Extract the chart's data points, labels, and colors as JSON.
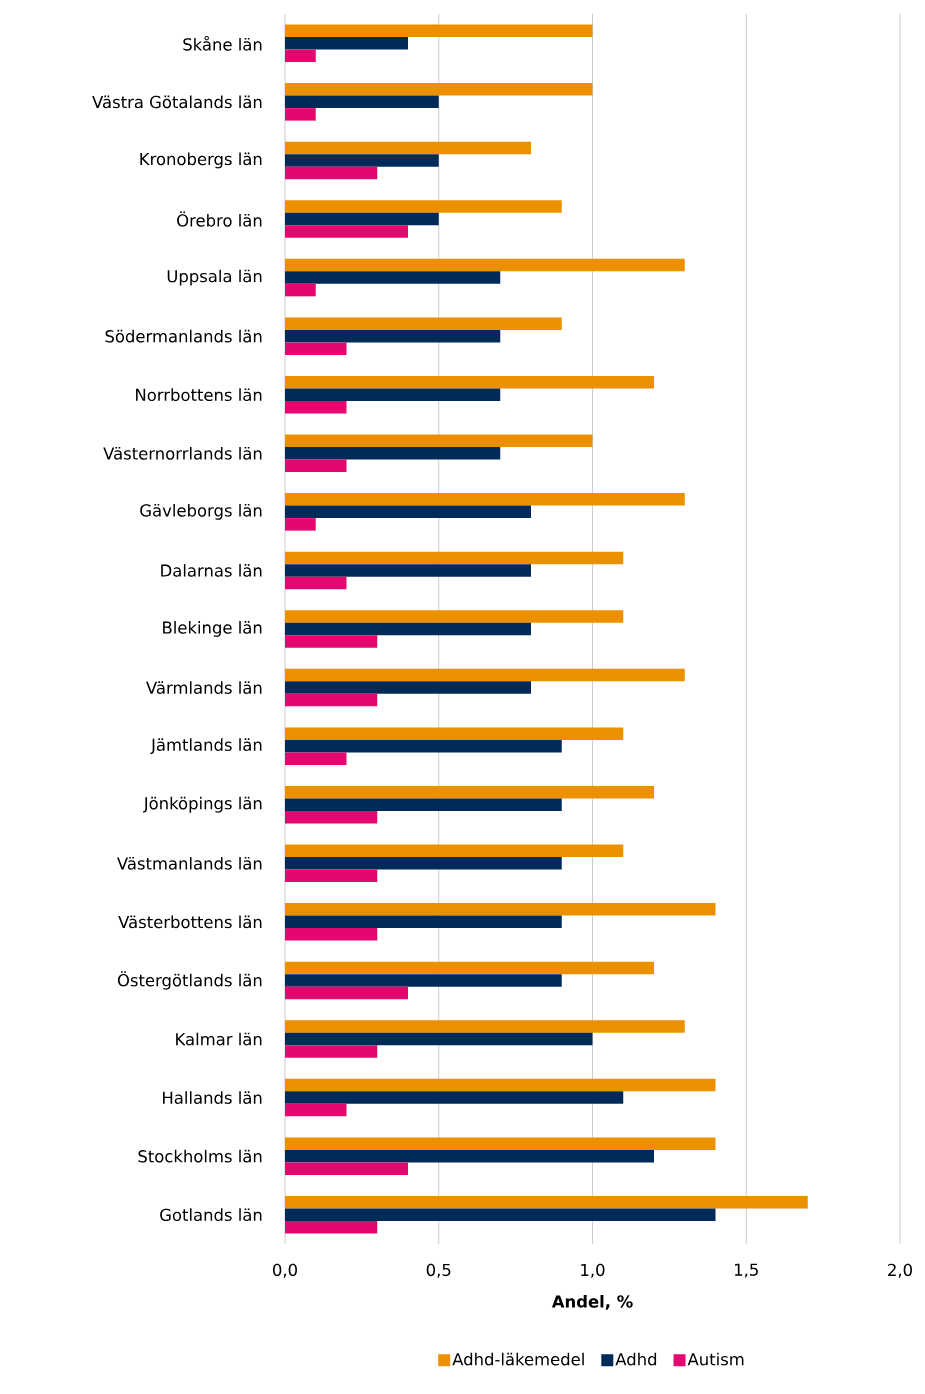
{
  "chart_data": {
    "type": "bar",
    "orientation": "horizontal",
    "xlabel": "Andel, %",
    "categories": [
      "Skåne län",
      "Västra Götalands län",
      "Kronobergs län",
      "Örebro län",
      "Uppsala län",
      "Södermanlands län",
      "Norrbottens län",
      "Västernorrlands län",
      "Gävleborgs län",
      "Dalarnas län",
      "Blekinge län",
      "Värmlands län",
      "Jämtlands län",
      "Jönköpings län",
      "Västmanlands län",
      "Västerbottens län",
      "Östergötlands län",
      "Kalmar län",
      "Hallands län",
      "Stockholms län",
      "Gotlands län"
    ],
    "series": [
      {
        "name": "Adhd-läkemedel",
        "color": "#ec9000",
        "values": [
          1.0,
          1.0,
          0.8,
          0.9,
          1.3,
          0.9,
          1.2,
          1.0,
          1.3,
          1.1,
          1.1,
          1.3,
          1.1,
          1.2,
          1.1,
          1.4,
          1.2,
          1.3,
          1.4,
          1.4,
          1.7
        ]
      },
      {
        "name": "Adhd",
        "color": "#002b59",
        "values": [
          0.4,
          0.5,
          0.5,
          0.5,
          0.7,
          0.7,
          0.7,
          0.7,
          0.8,
          0.8,
          0.8,
          0.8,
          0.9,
          0.9,
          0.9,
          0.9,
          0.9,
          1.0,
          1.1,
          1.2,
          1.4
        ]
      },
      {
        "name": "Autism",
        "color": "#e2086f",
        "values": [
          0.1,
          0.1,
          0.3,
          0.4,
          0.1,
          0.2,
          0.2,
          0.2,
          0.1,
          0.2,
          0.3,
          0.3,
          0.2,
          0.3,
          0.3,
          0.3,
          0.4,
          0.3,
          0.2,
          0.4,
          0.3
        ]
      }
    ],
    "xlim": [
      0,
      2.0
    ],
    "xticks": [
      {
        "value": 0,
        "label": "0,0"
      },
      {
        "value": 0.5,
        "label": "0,5"
      },
      {
        "value": 1.0,
        "label": "1,0"
      },
      {
        "value": 1.5,
        "label": "1,5"
      },
      {
        "value": 2.0,
        "label": "2,0"
      }
    ],
    "grid": "x",
    "legend": "bottom"
  }
}
